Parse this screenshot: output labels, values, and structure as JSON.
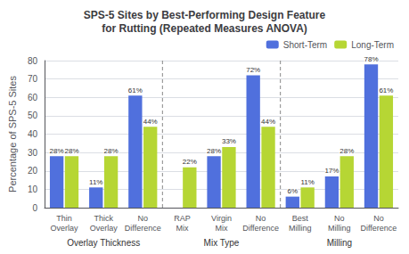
{
  "chart_data": {
    "type": "bar",
    "title": "SPS-5 Sites by Best-Performing Design Feature\nfor Rutting (Repeated Measures ANOVA)",
    "ylabel": "Percentage of SPS-5 Sites",
    "categories": [
      "Thin\nOverlay",
      "Thick\nOverlay",
      "No\nDifference",
      "RAP\nMix",
      "Virgin\nMix",
      "No\nDifference",
      "Best\nMilling",
      "No\nMilling",
      "No\nDifference"
    ],
    "series": [
      {
        "name": "Short-Term",
        "values": [
          28,
          11,
          61,
          0,
          28,
          72,
          6,
          17,
          78
        ],
        "value_labels": [
          "28%",
          "11%",
          "61%",
          null,
          "28%",
          "72%",
          "6%",
          "17%",
          "78%"
        ]
      },
      {
        "name": "Long-Term",
        "values": [
          28,
          28,
          44,
          22,
          33,
          44,
          11,
          28,
          61
        ],
        "value_labels": [
          "28%",
          "28%",
          "44%",
          "22%",
          "33%",
          "44%",
          "11%",
          "28%",
          "61%"
        ]
      }
    ],
    "annotations": [
      "Overlay Thickness",
      "Mix Type",
      "Milling"
    ],
    "ylim": [
      0,
      80
    ],
    "yticks": [
      0,
      10,
      20,
      30,
      40,
      50,
      60,
      70,
      80
    ],
    "grid": true,
    "legend": "upper right",
    "data_labels": true
  }
}
